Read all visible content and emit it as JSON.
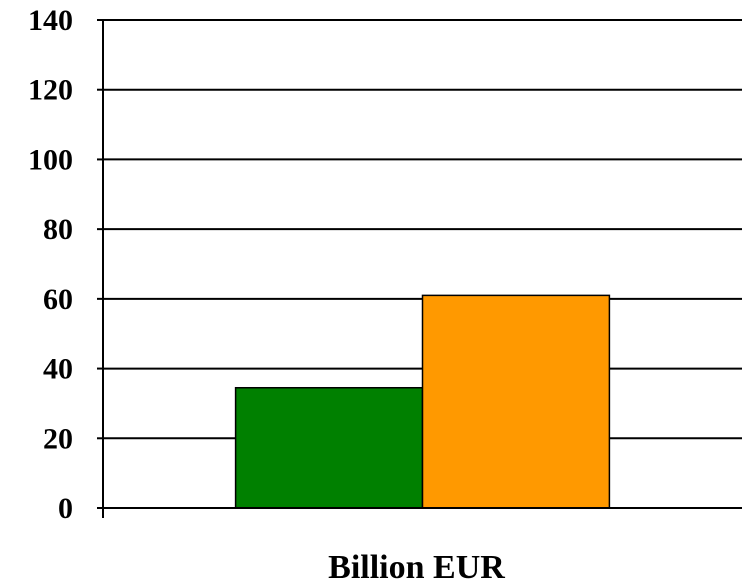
{
  "chart_data": {
    "type": "bar",
    "categories": [
      "Billion EUR"
    ],
    "series": [
      {
        "values": [
          34.5
        ]
      },
      {
        "values": [
          61
        ]
      }
    ],
    "xlabel": "Billion EUR",
    "ylabel": "",
    "ylim": [
      0,
      140
    ],
    "yticks": [
      0,
      20,
      40,
      60,
      80,
      100,
      120,
      140
    ],
    "grid": true,
    "legend": "none",
    "colors": {
      "series": [
        "#008000",
        "#ff9900"
      ],
      "grid": "#000000",
      "background": "#ffffff"
    }
  }
}
